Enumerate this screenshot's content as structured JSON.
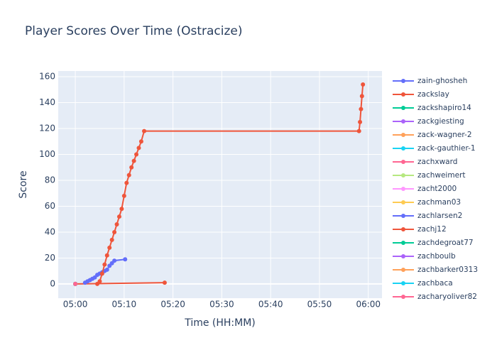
{
  "chart_data": {
    "type": "line",
    "title": "Player Scores Over Time (Ostracize)",
    "x_label": "Time (HH:MM)",
    "y_label": "Score",
    "xlim": [
      296.5,
      362.8
    ],
    "ylim": [
      -11,
      164.4
    ],
    "xticks": [
      {
        "value": 300,
        "label": "05:00"
      },
      {
        "value": 310,
        "label": "05:10"
      },
      {
        "value": 320,
        "label": "05:20"
      },
      {
        "value": 330,
        "label": "05:30"
      },
      {
        "value": 340,
        "label": "05:40"
      },
      {
        "value": 350,
        "label": "05:50"
      },
      {
        "value": 360,
        "label": "06:00"
      }
    ],
    "yticks": [
      0,
      20,
      40,
      60,
      80,
      100,
      120,
      140,
      160
    ],
    "grid": true,
    "series": [
      {
        "name": "zain-ghosheh",
        "color": "#636efa",
        "x": [
          300
        ],
        "values": [
          0
        ]
      },
      {
        "name": "zackslay",
        "color": "#EF553B",
        "x": [
          300,
          318.3
        ],
        "values": [
          0,
          1
        ]
      },
      {
        "name": "zackshapiro14",
        "color": "#00cc96",
        "x": [
          300
        ],
        "values": [
          0
        ]
      },
      {
        "name": "zackgiesting",
        "color": "#ab63fa",
        "x": [
          300
        ],
        "values": [
          0
        ]
      },
      {
        "name": "zack-wagner-2",
        "color": "#FFA15A",
        "x": [
          300
        ],
        "values": [
          0
        ]
      },
      {
        "name": "zack-gauthier-1",
        "color": "#19d3f3",
        "x": [
          300
        ],
        "values": [
          0
        ]
      },
      {
        "name": "zachxward",
        "color": "#FF6692",
        "x": [
          300
        ],
        "values": [
          0
        ]
      },
      {
        "name": "zachweimert",
        "color": "#B6E880",
        "x": [
          300
        ],
        "values": [
          0
        ]
      },
      {
        "name": "zacht2000",
        "color": "#FF97FF",
        "x": [
          300
        ],
        "values": [
          0
        ]
      },
      {
        "name": "zachman03",
        "color": "#FECB52",
        "x": [
          300
        ],
        "values": [
          0
        ]
      },
      {
        "name": "zachlarsen2",
        "color": "#636efa",
        "x": [
          302,
          302.5,
          303,
          303.5,
          304,
          304.5,
          305,
          305.5,
          306,
          306.5,
          307,
          307.5,
          308,
          310.2
        ],
        "values": [
          1,
          2,
          3,
          4,
          5,
          7,
          8,
          9,
          10,
          11,
          14,
          16,
          18,
          19
        ]
      },
      {
        "name": "zachj12",
        "color": "#EF553B",
        "x": [
          304.5,
          305,
          305.5,
          306,
          306.5,
          307,
          307.5,
          308,
          308.5,
          309,
          309.5,
          310,
          310.5,
          311,
          311.5,
          312,
          312.5,
          313,
          313.5,
          314.1,
          358.1,
          358.3,
          358.5,
          358.7,
          358.9
        ],
        "values": [
          0,
          2,
          8,
          15,
          22,
          28,
          34,
          40,
          46,
          52,
          58,
          68,
          78,
          84,
          90,
          95,
          100,
          105,
          110,
          118,
          118,
          125,
          135,
          145,
          154
        ]
      },
      {
        "name": "zachdegroat77",
        "color": "#00cc96",
        "x": [
          300
        ],
        "values": [
          0
        ]
      },
      {
        "name": "zachboulb",
        "color": "#ab63fa",
        "x": [
          300
        ],
        "values": [
          0
        ]
      },
      {
        "name": "zachbarker0313",
        "color": "#FFA15A",
        "x": [
          300
        ],
        "values": [
          0
        ]
      },
      {
        "name": "zachbaca",
        "color": "#19d3f3",
        "x": [
          300
        ],
        "values": [
          0
        ]
      },
      {
        "name": "zacharyoliver82",
        "color": "#FF6692",
        "x": [
          300
        ],
        "values": [
          0
        ]
      }
    ]
  }
}
